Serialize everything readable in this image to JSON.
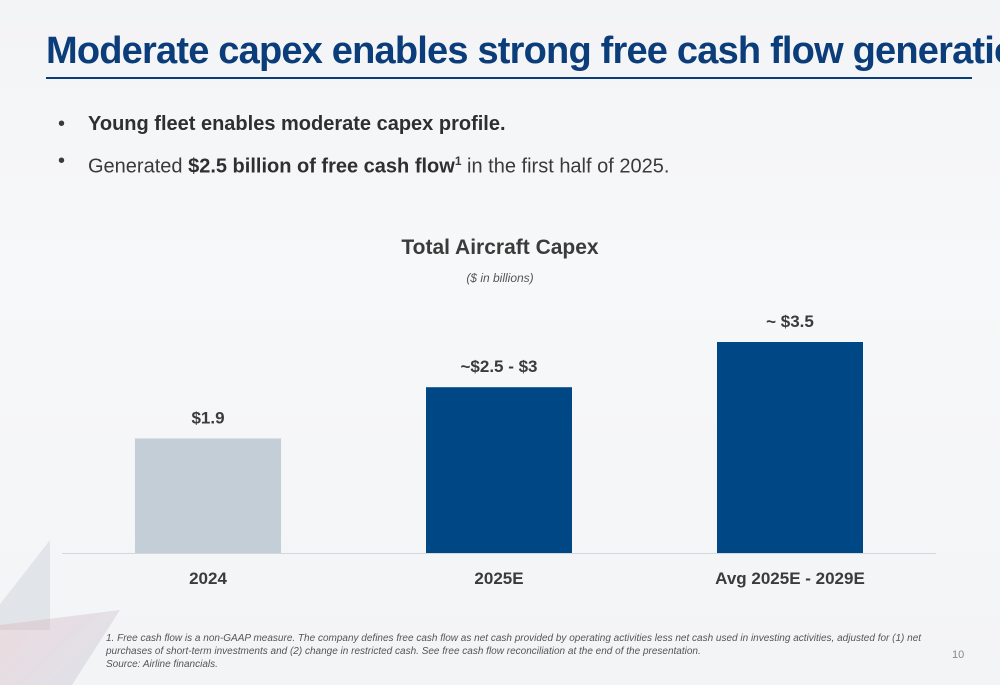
{
  "title": "Moderate capex enables strong free cash flow generation",
  "bullets": [
    {
      "bold": "Young fleet enables moderate capex profile.",
      "text_before": "",
      "text_after": ""
    },
    {
      "text_before": "Generated ",
      "bold": "$2.5 billion of free cash flow",
      "sup": "1",
      "text_after": " in the first half of 2025."
    }
  ],
  "bullet_marker": "•",
  "chart_data": {
    "type": "bar",
    "title": "Total Aircraft Capex",
    "subtitle": "($ in billions)",
    "categories": [
      "2024",
      "2025E",
      "Avg 2025E - 2029E"
    ],
    "values": [
      1.9,
      2.75,
      3.5
    ],
    "data_labels": [
      "$1.9",
      "~$2.5 - $3",
      "~ $3.5"
    ],
    "colors": [
      "#c4ced6",
      "#004785",
      "#004785"
    ],
    "ylim": [
      0,
      3.5
    ],
    "xlabel": "",
    "ylabel": "",
    "grid": false
  },
  "footnotes": [
    "1. Free cash flow is a non-GAAP measure. The company defines free cash flow as net cash provided by operating activities less net cash used in investing activities, adjusted for (1) net purchases of short-term investments and (2) change in restricted cash. See free cash flow reconciliation at the end of the presentation.",
    "Source: Airline financials."
  ],
  "page_number": "10"
}
